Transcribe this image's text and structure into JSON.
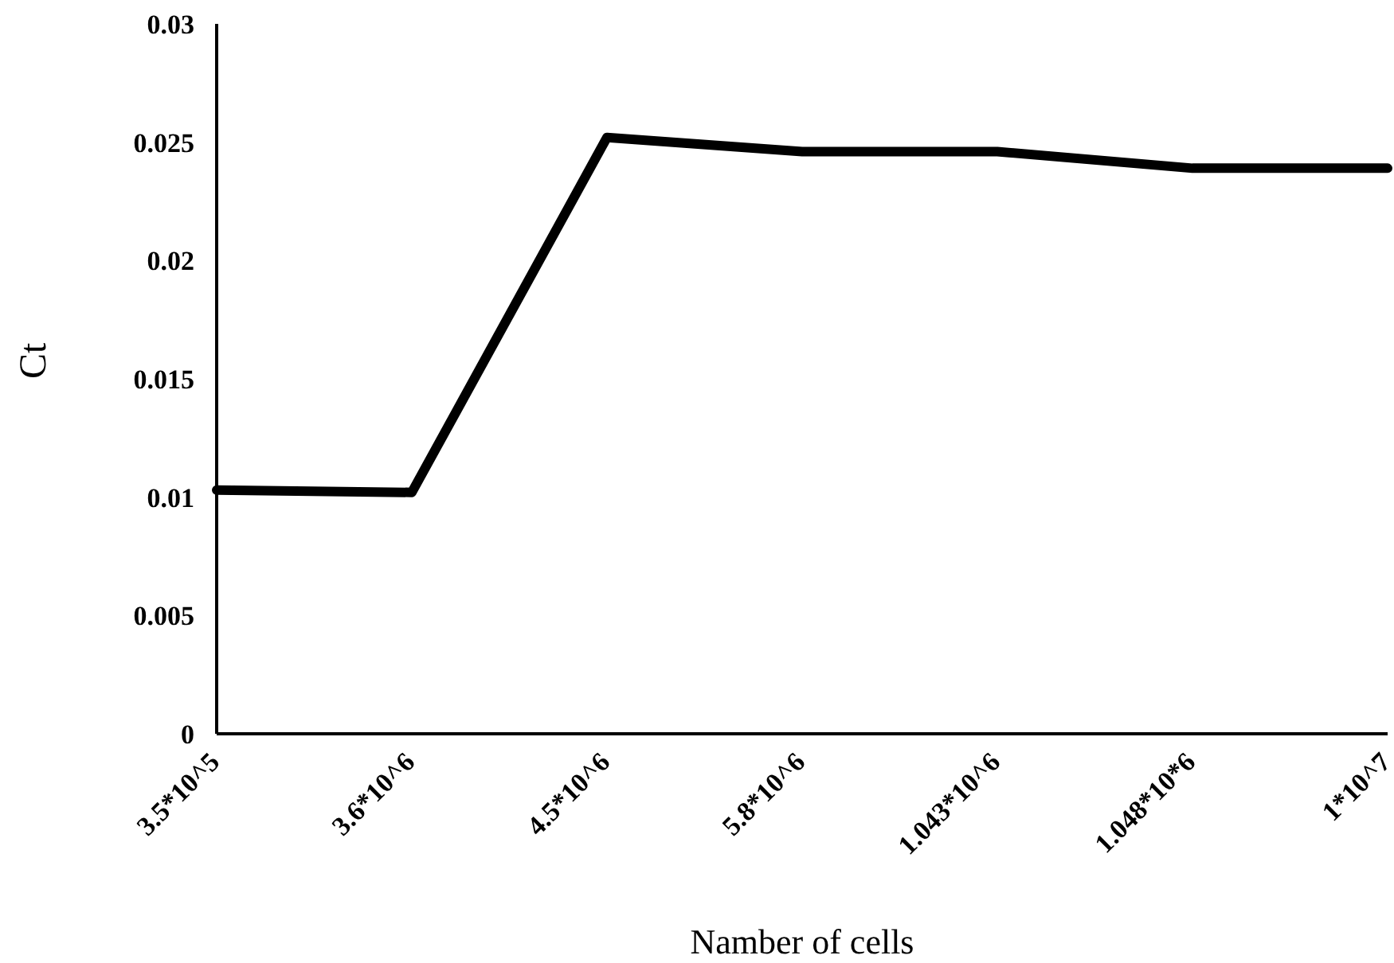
{
  "chart_data": {
    "type": "line",
    "xlabel": "Namber of cells",
    "ylabel": "Ct",
    "categories": [
      "3.5*10^5",
      "3.6*10^6",
      "4.5*10^6",
      "5.8*10^6",
      "1.043*10^6",
      "1.048*10*6",
      "1*10^7"
    ],
    "series": [
      {
        "color": "#000000",
        "values": [
          0.0103,
          0.0102,
          0.0252,
          0.0246,
          0.0246,
          0.0239,
          0.0239
        ]
      }
    ],
    "ylim": [
      0,
      0.03
    ],
    "yticks": [
      0,
      0.005,
      0.01,
      0.015,
      0.02,
      0.025,
      0.03
    ],
    "grid": false,
    "legend": false,
    "marker": "none",
    "line_style": "solid"
  }
}
